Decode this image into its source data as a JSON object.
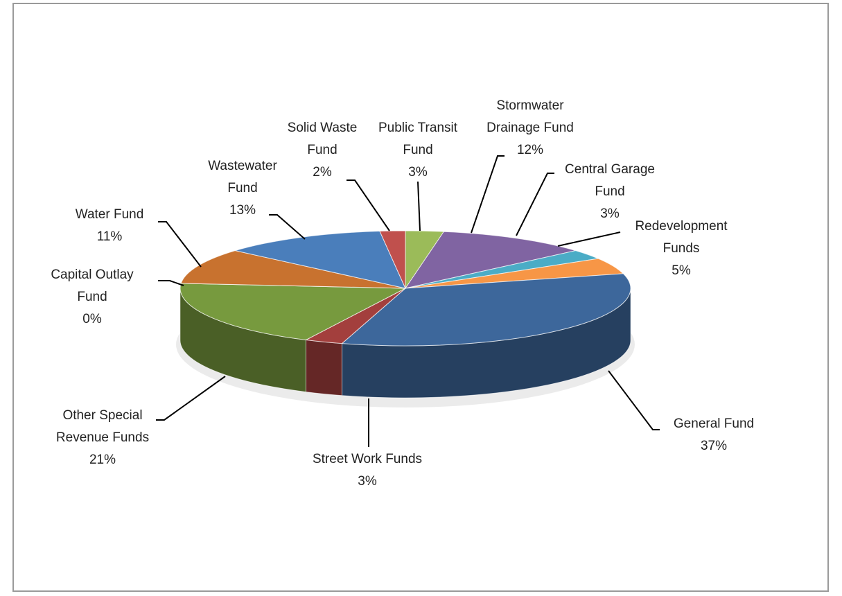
{
  "chart_data": {
    "type": "pie3d",
    "categories": [
      "Public Transit Fund",
      "Stormwater Drainage Fund",
      "Central Garage Fund",
      "Redevelopment Funds",
      "General Fund",
      "Street Work Funds",
      "Other Special Revenue Funds",
      "Capital Outlay Fund",
      "Water Fund",
      "Wastewater Fund",
      "Solid Waste Fund"
    ],
    "values": [
      3,
      12,
      3,
      5,
      37,
      3,
      21,
      0,
      11,
      13,
      2
    ],
    "value_labels": [
      "3%",
      "12%",
      "3%",
      "5%",
      "37%",
      "3%",
      "21%",
      "0%",
      "11%",
      "13%",
      "2%"
    ],
    "colors": [
      "#9bbb59",
      "#8064a2",
      "#4bacc6",
      "#f79646",
      "#3d679b",
      "#a33f3d",
      "#779a3e",
      "#d0d0d0",
      "#c8722f",
      "#4a7ebb",
      "#c0504d"
    ]
  }
}
